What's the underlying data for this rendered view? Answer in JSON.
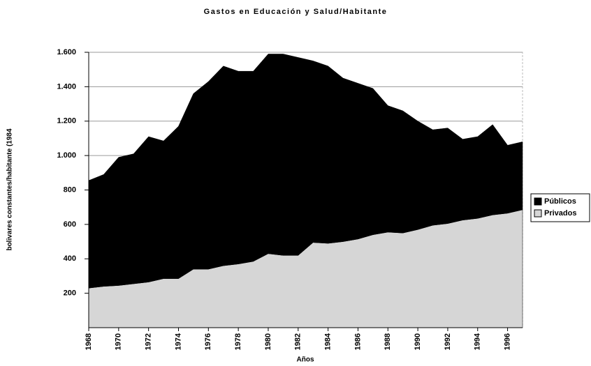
{
  "chart_data": {
    "type": "area",
    "stacked": true,
    "title": "Gastos en Educación y Salud/Habitante",
    "xlabel": "Años",
    "ylabel": "bolivares constantes/habitante (1984",
    "x": [
      1968,
      1969,
      1970,
      1971,
      1972,
      1973,
      1974,
      1975,
      1976,
      1977,
      1978,
      1979,
      1980,
      1981,
      1982,
      1983,
      1984,
      1985,
      1986,
      1987,
      1988,
      1989,
      1990,
      1991,
      1992,
      1993,
      1994,
      1995,
      1996,
      1997
    ],
    "series": [
      {
        "name": "Públicos",
        "color": "#000000",
        "values": [
          625,
          650,
          745,
          755,
          845,
          800,
          885,
          1020,
          1090,
          1160,
          1120,
          1105,
          1160,
          1170,
          1150,
          1055,
          1030,
          950,
          905,
          850,
          735,
          710,
          630,
          555,
          555,
          470,
          475,
          525,
          395,
          395
        ]
      },
      {
        "name": "Privados",
        "color": "#d6d6d6",
        "values": [
          230,
          240,
          245,
          255,
          265,
          285,
          285,
          340,
          340,
          360,
          370,
          385,
          430,
          420,
          420,
          495,
          490,
          500,
          515,
          540,
          555,
          550,
          570,
          595,
          605,
          625,
          635,
          655,
          665,
          685
        ]
      }
    ],
    "xlim": [
      1968,
      1997
    ],
    "xticks": [
      1968,
      1970,
      1972,
      1974,
      1976,
      1978,
      1980,
      1982,
      1984,
      1986,
      1988,
      1990,
      1992,
      1994,
      1996
    ],
    "ylim": [
      0,
      1600
    ],
    "yticks": [
      200,
      400,
      600,
      800,
      {
        "value": 1000,
        "label": "1.000"
      },
      {
        "value": 1200,
        "label": "1.200"
      },
      {
        "value": 1400,
        "label": "1.400"
      },
      {
        "value": 1600,
        "label": "1.600"
      }
    ],
    "grid": true,
    "legend": "right"
  }
}
